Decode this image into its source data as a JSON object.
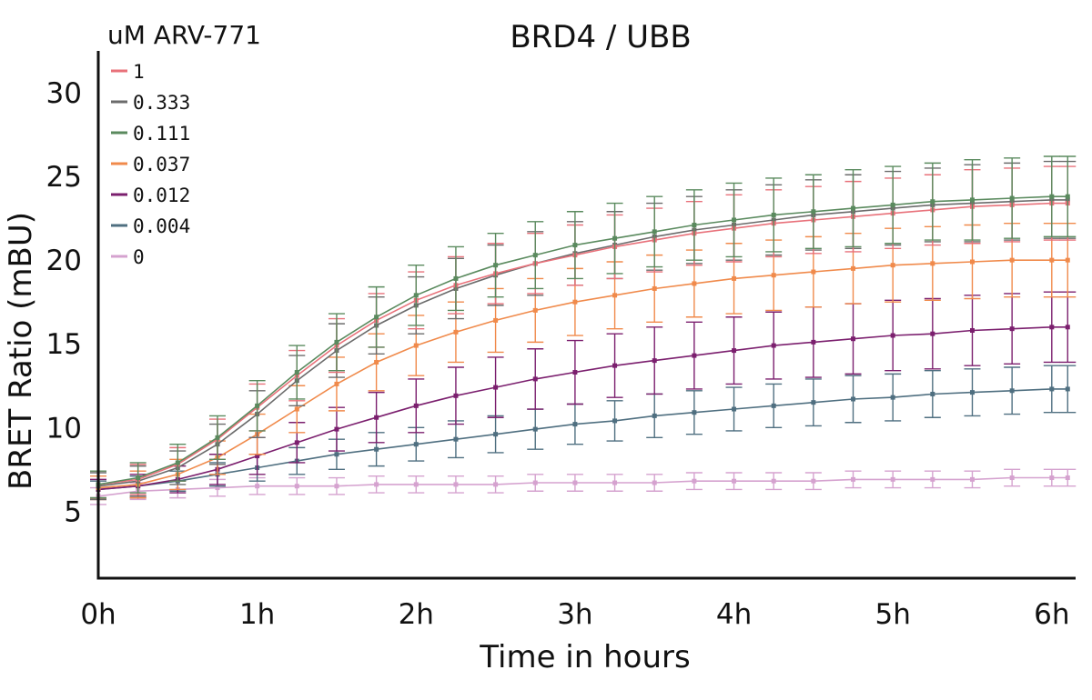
{
  "chart_data": {
    "type": "scatter",
    "title": "BRD4 / UBB",
    "xlabel": "Time in hours",
    "ylabel": "BRET Ratio (mBU)",
    "xlim": [
      0,
      6.15
    ],
    "ylim": [
      1,
      32.5
    ],
    "x_ticks": [
      {
        "value": 0,
        "label": "0h"
      },
      {
        "value": 1,
        "label": "1h"
      },
      {
        "value": 2,
        "label": "2h"
      },
      {
        "value": 3,
        "label": "3h"
      },
      {
        "value": 4,
        "label": "4h"
      },
      {
        "value": 5,
        "label": "5h"
      },
      {
        "value": 6,
        "label": "6h"
      }
    ],
    "y_ticks": [
      5,
      10,
      15,
      20,
      25,
      30
    ],
    "grid": false,
    "legend": {
      "title": "uM ARV-771",
      "position": "top-left"
    },
    "x_hours": [
      0,
      0.25,
      0.5,
      0.75,
      1,
      1.25,
      1.5,
      1.75,
      2,
      2.25,
      2.5,
      2.75,
      3,
      3.25,
      3.5,
      3.75,
      4,
      4.25,
      4.5,
      4.75,
      5,
      5.25,
      5.5,
      5.75,
      6,
      6.1
    ],
    "series": [
      {
        "name": "1",
        "color": "#e8717a",
        "values": [
          6.6,
          6.9,
          7.8,
          9.3,
          11.2,
          13.1,
          14.9,
          16.4,
          17.6,
          18.5,
          19.2,
          19.8,
          20.3,
          20.8,
          21.2,
          21.6,
          21.9,
          22.2,
          22.4,
          22.6,
          22.8,
          23.0,
          23.2,
          23.3,
          23.4,
          23.4
        ],
        "error": [
          0.8,
          0.9,
          1.0,
          1.2,
          1.4,
          1.5,
          1.6,
          1.6,
          1.7,
          1.7,
          1.8,
          1.8,
          1.8,
          1.9,
          1.9,
          1.9,
          2.0,
          2.0,
          2.0,
          2.1,
          2.1,
          2.1,
          2.2,
          2.2,
          2.2,
          2.2
        ]
      },
      {
        "name": "0.333",
        "color": "#6b6b6b",
        "values": [
          6.5,
          6.8,
          7.6,
          9.0,
          10.8,
          12.8,
          14.6,
          16.1,
          17.3,
          18.3,
          19.1,
          19.8,
          20.4,
          20.9,
          21.4,
          21.8,
          22.1,
          22.4,
          22.7,
          22.9,
          23.1,
          23.3,
          23.4,
          23.5,
          23.6,
          23.6
        ],
        "error": [
          0.8,
          0.9,
          1.0,
          1.2,
          1.4,
          1.5,
          1.6,
          1.7,
          1.7,
          1.8,
          1.8,
          1.9,
          1.9,
          2.0,
          2.0,
          2.0,
          2.1,
          2.1,
          2.1,
          2.2,
          2.2,
          2.2,
          2.3,
          2.3,
          2.3,
          2.3
        ]
      },
      {
        "name": "0.111",
        "color": "#5a8a5e",
        "values": [
          6.6,
          7.0,
          7.9,
          9.4,
          11.3,
          13.3,
          15.1,
          16.6,
          17.9,
          18.9,
          19.7,
          20.3,
          20.9,
          21.3,
          21.7,
          22.1,
          22.4,
          22.7,
          22.9,
          23.1,
          23.3,
          23.5,
          23.6,
          23.7,
          23.8,
          23.8
        ],
        "error": [
          0.8,
          0.9,
          1.1,
          1.3,
          1.5,
          1.6,
          1.7,
          1.8,
          1.8,
          1.9,
          1.9,
          2.0,
          2.0,
          2.1,
          2.1,
          2.1,
          2.2,
          2.2,
          2.2,
          2.3,
          2.3,
          2.3,
          2.4,
          2.4,
          2.4,
          2.4
        ]
      },
      {
        "name": "0.037",
        "color": "#f08a4b",
        "values": [
          6.4,
          6.6,
          7.2,
          8.2,
          9.6,
          11.1,
          12.6,
          13.9,
          14.9,
          15.7,
          16.4,
          17.0,
          17.5,
          17.9,
          18.3,
          18.6,
          18.9,
          19.1,
          19.3,
          19.5,
          19.7,
          19.8,
          19.9,
          20.0,
          20.0,
          20.0
        ],
        "error": [
          0.7,
          0.8,
          0.9,
          1.0,
          1.2,
          1.4,
          1.6,
          1.7,
          1.8,
          1.8,
          1.9,
          1.9,
          2.0,
          2.0,
          2.0,
          2.0,
          2.1,
          2.1,
          2.1,
          2.1,
          2.2,
          2.2,
          2.2,
          2.2,
          2.2,
          2.2
        ]
      },
      {
        "name": "0.012",
        "color": "#7b1f6e",
        "values": [
          6.3,
          6.5,
          6.9,
          7.5,
          8.3,
          9.1,
          9.9,
          10.6,
          11.3,
          11.9,
          12.4,
          12.9,
          13.3,
          13.7,
          14.0,
          14.3,
          14.6,
          14.9,
          15.1,
          15.3,
          15.5,
          15.6,
          15.8,
          15.9,
          16.0,
          16.0
        ],
        "error": [
          0.6,
          0.7,
          0.8,
          0.9,
          1.1,
          1.2,
          1.3,
          1.5,
          1.6,
          1.7,
          1.8,
          1.8,
          1.9,
          1.9,
          2.0,
          2.0,
          2.0,
          2.0,
          2.1,
          2.1,
          2.1,
          2.1,
          2.1,
          2.1,
          2.1,
          2.1
        ]
      },
      {
        "name": "0.004",
        "color": "#4f6f80",
        "values": [
          6.3,
          6.5,
          6.8,
          7.2,
          7.6,
          8.0,
          8.4,
          8.7,
          9.0,
          9.3,
          9.6,
          9.9,
          10.2,
          10.4,
          10.7,
          10.9,
          11.1,
          11.3,
          11.5,
          11.7,
          11.8,
          12.0,
          12.1,
          12.2,
          12.3,
          12.3
        ],
        "error": [
          0.5,
          0.6,
          0.6,
          0.7,
          0.8,
          0.8,
          0.9,
          1.0,
          1.0,
          1.1,
          1.1,
          1.2,
          1.2,
          1.2,
          1.3,
          1.3,
          1.3,
          1.3,
          1.4,
          1.4,
          1.4,
          1.4,
          1.4,
          1.4,
          1.4,
          1.4
        ]
      },
      {
        "name": "0",
        "color": "#d5a2cf",
        "values": [
          5.9,
          6.2,
          6.3,
          6.4,
          6.5,
          6.5,
          6.5,
          6.6,
          6.6,
          6.6,
          6.6,
          6.7,
          6.7,
          6.7,
          6.7,
          6.8,
          6.8,
          6.8,
          6.8,
          6.9,
          6.9,
          6.9,
          6.9,
          7.0,
          7.0,
          7.0
        ],
        "error": [
          0.5,
          0.5,
          0.5,
          0.5,
          0.5,
          0.5,
          0.5,
          0.5,
          0.5,
          0.5,
          0.5,
          0.5,
          0.5,
          0.5,
          0.5,
          0.5,
          0.5,
          0.5,
          0.5,
          0.5,
          0.5,
          0.5,
          0.5,
          0.5,
          0.5,
          0.5
        ]
      }
    ]
  }
}
